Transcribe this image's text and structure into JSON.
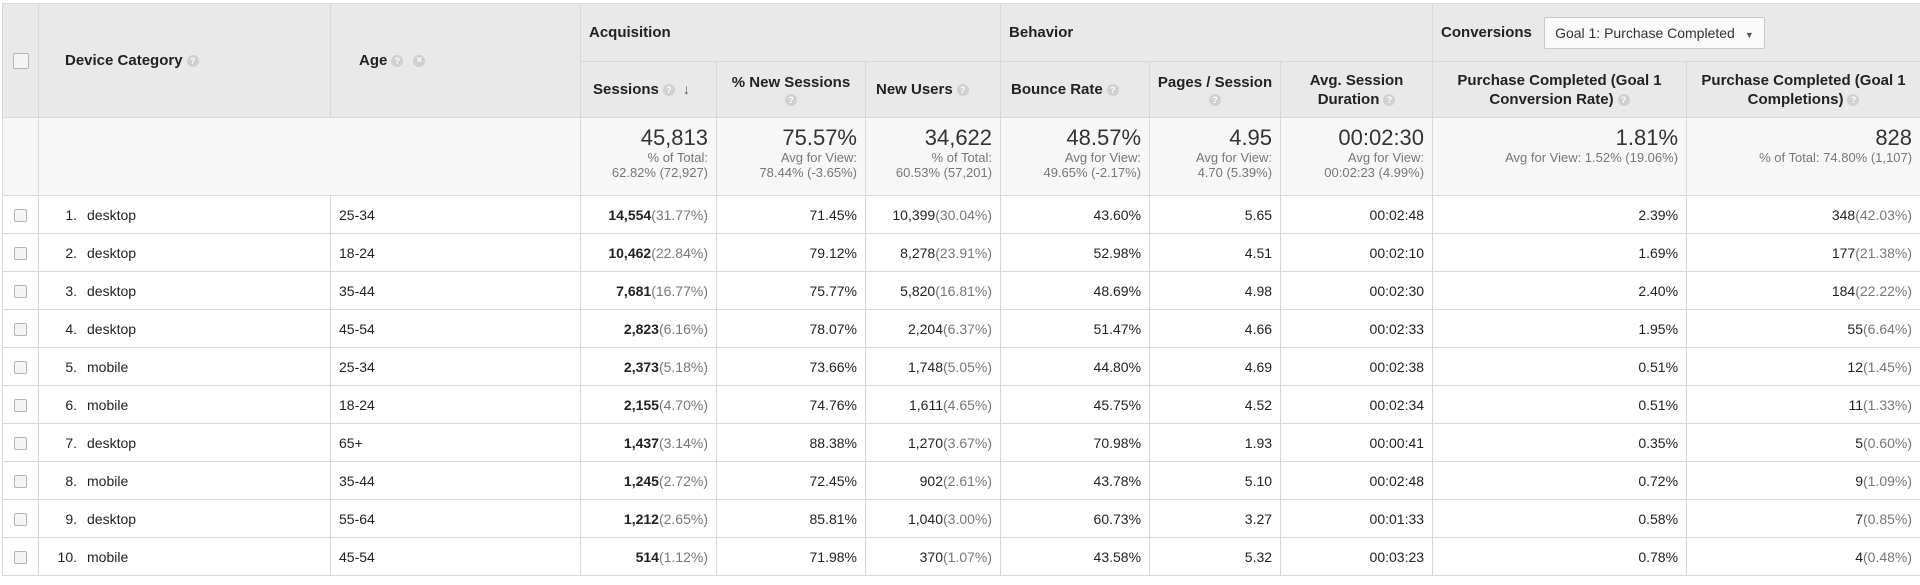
{
  "columns": {
    "device_category": "Device Category",
    "age": "Age",
    "acquisition": "Acquisition",
    "behavior": "Behavior",
    "conversions": "Conversions",
    "goal_select": "Goal 1: Purchase Completed",
    "sessions": "Sessions",
    "pct_new_sessions": "% New Sessions",
    "new_users": "New Users",
    "bounce_rate": "Bounce Rate",
    "pages_session": "Pages / Session",
    "avg_session_duration_l1": "Avg. Session",
    "avg_session_duration_l2": "Duration",
    "conv_rate_l1": "Purchase Completed (Goal 1",
    "conv_rate_l2": "Conversion Rate)",
    "completions_l1": "Purchase Completed (Goal 1",
    "completions_l2": "Completions)"
  },
  "icons": {
    "help": "question-mark-icon",
    "remove": "remove-dimension-icon",
    "sort": "sort-descending-arrow-icon",
    "dropdown": "caret-down-icon"
  },
  "totals": {
    "sessions": {
      "value": "45,813",
      "l1": "% of Total:",
      "l2": "62.82% (72,927)"
    },
    "pct_new_sessions": {
      "value": "75.57%",
      "l1": "Avg for View:",
      "l2": "78.44% (-3.65%)"
    },
    "new_users": {
      "value": "34,622",
      "l1": "% of Total:",
      "l2": "60.53% (57,201)"
    },
    "bounce_rate": {
      "value": "48.57%",
      "l1": "Avg for View:",
      "l2": "49.65% (-2.17%)"
    },
    "pages_session": {
      "value": "4.95",
      "l1": "Avg for View:",
      "l2": "4.70 (5.39%)"
    },
    "avg_duration": {
      "value": "00:02:30",
      "l1": "Avg for View:",
      "l2": "00:02:23 (4.99%)"
    },
    "conv_rate": {
      "value": "1.81%",
      "l1": "Avg for View: 1.52% (19.06%)"
    },
    "completions": {
      "value": "828",
      "l1": "% of Total: 74.80% (1,107)"
    }
  },
  "rows": [
    {
      "idx": "1.",
      "device": "desktop",
      "age": "25-34",
      "sessions": "14,554",
      "sessions_pct": "(31.77%)",
      "new_sessions": "71.45%",
      "new_users": "10,399",
      "new_users_pct": "(30.04%)",
      "bounce": "43.60%",
      "pages": "5.65",
      "duration": "00:02:48",
      "conv_rate": "2.39%",
      "completions": "348",
      "completions_pct": "(42.03%)"
    },
    {
      "idx": "2.",
      "device": "desktop",
      "age": "18-24",
      "sessions": "10,462",
      "sessions_pct": "(22.84%)",
      "new_sessions": "79.12%",
      "new_users": "8,278",
      "new_users_pct": "(23.91%)",
      "bounce": "52.98%",
      "pages": "4.51",
      "duration": "00:02:10",
      "conv_rate": "1.69%",
      "completions": "177",
      "completions_pct": "(21.38%)"
    },
    {
      "idx": "3.",
      "device": "desktop",
      "age": "35-44",
      "sessions": "7,681",
      "sessions_pct": "(16.77%)",
      "new_sessions": "75.77%",
      "new_users": "5,820",
      "new_users_pct": "(16.81%)",
      "bounce": "48.69%",
      "pages": "4.98",
      "duration": "00:02:30",
      "conv_rate": "2.40%",
      "completions": "184",
      "completions_pct": "(22.22%)"
    },
    {
      "idx": "4.",
      "device": "desktop",
      "age": "45-54",
      "sessions": "2,823",
      "sessions_pct": "(6.16%)",
      "new_sessions": "78.07%",
      "new_users": "2,204",
      "new_users_pct": "(6.37%)",
      "bounce": "51.47%",
      "pages": "4.66",
      "duration": "00:02:33",
      "conv_rate": "1.95%",
      "completions": "55",
      "completions_pct": "(6.64%)"
    },
    {
      "idx": "5.",
      "device": "mobile",
      "age": "25-34",
      "sessions": "2,373",
      "sessions_pct": "(5.18%)",
      "new_sessions": "73.66%",
      "new_users": "1,748",
      "new_users_pct": "(5.05%)",
      "bounce": "44.80%",
      "pages": "4.69",
      "duration": "00:02:38",
      "conv_rate": "0.51%",
      "completions": "12",
      "completions_pct": "(1.45%)"
    },
    {
      "idx": "6.",
      "device": "mobile",
      "age": "18-24",
      "sessions": "2,155",
      "sessions_pct": "(4.70%)",
      "new_sessions": "74.76%",
      "new_users": "1,611",
      "new_users_pct": "(4.65%)",
      "bounce": "45.75%",
      "pages": "4.52",
      "duration": "00:02:34",
      "conv_rate": "0.51%",
      "completions": "11",
      "completions_pct": "(1.33%)"
    },
    {
      "idx": "7.",
      "device": "desktop",
      "age": "65+",
      "sessions": "1,437",
      "sessions_pct": "(3.14%)",
      "new_sessions": "88.38%",
      "new_users": "1,270",
      "new_users_pct": "(3.67%)",
      "bounce": "70.98%",
      "pages": "1.93",
      "duration": "00:00:41",
      "conv_rate": "0.35%",
      "completions": "5",
      "completions_pct": "(0.60%)"
    },
    {
      "idx": "8.",
      "device": "mobile",
      "age": "35-44",
      "sessions": "1,245",
      "sessions_pct": "(2.72%)",
      "new_sessions": "72.45%",
      "new_users": "902",
      "new_users_pct": "(2.61%)",
      "bounce": "43.78%",
      "pages": "5.10",
      "duration": "00:02:48",
      "conv_rate": "0.72%",
      "completions": "9",
      "completions_pct": "(1.09%)"
    },
    {
      "idx": "9.",
      "device": "desktop",
      "age": "55-64",
      "sessions": "1,212",
      "sessions_pct": "(2.65%)",
      "new_sessions": "85.81%",
      "new_users": "1,040",
      "new_users_pct": "(3.00%)",
      "bounce": "60.73%",
      "pages": "3.27",
      "duration": "00:01:33",
      "conv_rate": "0.58%",
      "completions": "7",
      "completions_pct": "(0.85%)"
    },
    {
      "idx": "10.",
      "device": "mobile",
      "age": "45-54",
      "sessions": "514",
      "sessions_pct": "(1.12%)",
      "new_sessions": "71.98%",
      "new_users": "370",
      "new_users_pct": "(1.07%)",
      "bounce": "43.58%",
      "pages": "5.32",
      "duration": "00:03:23",
      "conv_rate": "0.78%",
      "completions": "4",
      "completions_pct": "(0.48%)"
    }
  ]
}
